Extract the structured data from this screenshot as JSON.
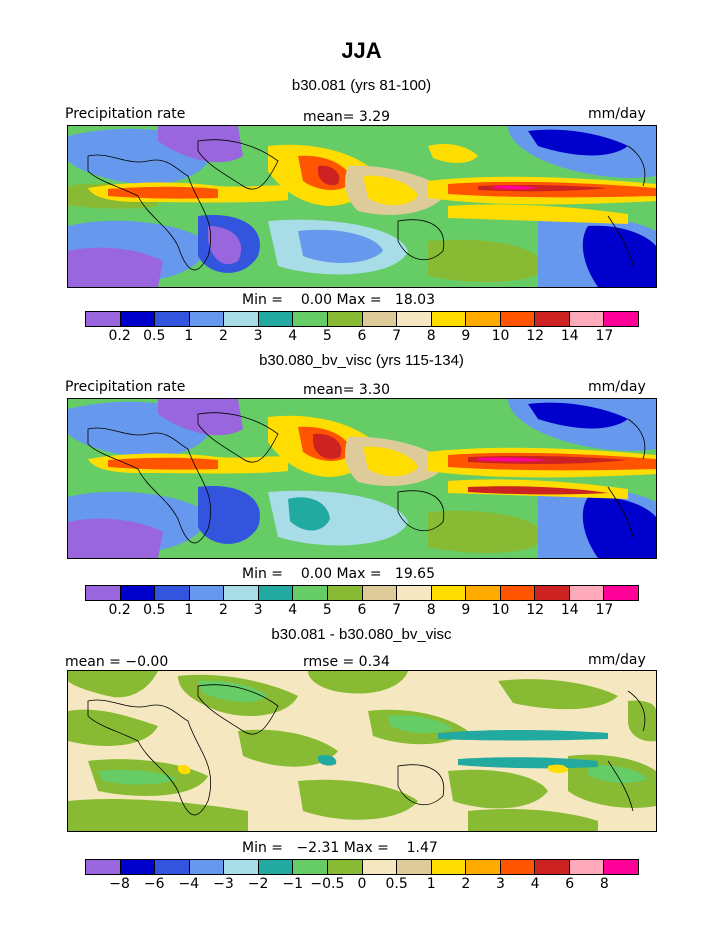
{
  "title": "JJA",
  "panels": [
    {
      "subtitle": "b30.081 (yrs 81-100)",
      "left_label": "Precipitation rate",
      "center_label": "mean=    3.29",
      "right_label": "mm/day",
      "minmax": "Min =    0.00 Max =   18.03"
    },
    {
      "subtitle": "b30.080_bv_visc (yrs 115-134)",
      "left_label": "Precipitation rate",
      "center_label": "mean=    3.30",
      "right_label": "mm/day",
      "minmax": "Min =    0.00 Max =   19.65"
    },
    {
      "subtitle": "b30.081 - b30.080_bv_visc",
      "left_label": "mean =  −0.00",
      "center_label": "rmse =   0.34",
      "right_label": "mm/day",
      "minmax": "Min =   −2.31 Max =    1.47"
    }
  ],
  "precip_colorbar": {
    "colors": [
      "#9966dd",
      "#0000cc",
      "#3355dd",
      "#6699ee",
      "#a8dde8",
      "#22aaa0",
      "#66cc66",
      "#88bb33",
      "#ddcc99",
      "#f5e8c0",
      "#ffdd00",
      "#ffaa00",
      "#ff5500",
      "#cc2222",
      "#ffaabb",
      "#ff0099"
    ],
    "ticks": [
      "0.2",
      "0.5",
      "1",
      "2",
      "3",
      "4",
      "5",
      "6",
      "7",
      "8",
      "9",
      "10",
      "12",
      "14",
      "17"
    ]
  },
  "diff_colorbar": {
    "colors": [
      "#9966dd",
      "#0000cc",
      "#3355dd",
      "#6699ee",
      "#a8dde8",
      "#22aaa0",
      "#66cc66",
      "#88bb33",
      "#f5e8c0",
      "#ddcc99",
      "#ffdd00",
      "#ffaa00",
      "#ff5500",
      "#cc2222",
      "#ffaabb",
      "#ff0099"
    ],
    "ticks": [
      "−8",
      "−6",
      "−4",
      "−3",
      "−2",
      "−1",
      "−0.5",
      "0",
      "0.5",
      "1",
      "2",
      "3",
      "4",
      "6",
      "8"
    ]
  }
}
